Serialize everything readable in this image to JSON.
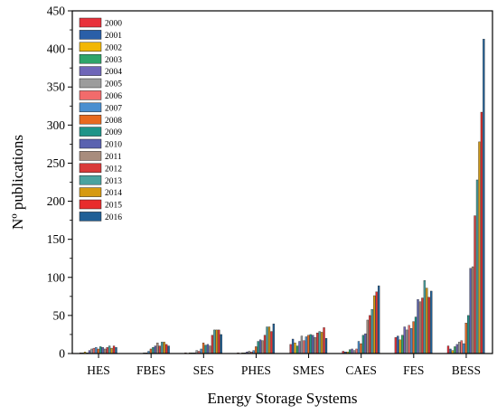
{
  "chart_data": {
    "type": "bar",
    "xlabel": "Energy Storage Systems",
    "ylabel": "Nº publications",
    "ylim": [
      0,
      450
    ],
    "yticks": [
      0,
      50,
      100,
      150,
      200,
      250,
      300,
      350,
      400,
      450
    ],
    "grid": false,
    "legend_position": "top-left",
    "categories": [
      "HES",
      "FBES",
      "SES",
      "PHES",
      "SMES",
      "CAES",
      "FES",
      "BESS"
    ],
    "series": [
      {
        "name": "2000",
        "color": "#e8313b",
        "values": [
          1,
          0,
          1,
          1,
          12,
          3,
          21,
          10
        ]
      },
      {
        "name": "2001",
        "color": "#2a5fa8",
        "values": [
          1,
          0,
          0,
          0,
          19,
          2,
          23,
          6
        ]
      },
      {
        "name": "2002",
        "color": "#f2b705",
        "values": [
          2,
          0,
          1,
          1,
          14,
          2,
          18,
          4
        ]
      },
      {
        "name": "2003",
        "color": "#2fa56a",
        "values": [
          1,
          0,
          1,
          1,
          10,
          5,
          24,
          9
        ]
      },
      {
        "name": "2004",
        "color": "#6f66b8",
        "values": [
          4,
          0,
          1,
          2,
          16,
          6,
          35,
          12
        ]
      },
      {
        "name": "2005",
        "color": "#9c9c9c",
        "values": [
          6,
          1,
          4,
          3,
          23,
          4,
          31,
          15
        ]
      },
      {
        "name": "2006",
        "color": "#f26b6b",
        "values": [
          7,
          1,
          3,
          2,
          17,
          6,
          37,
          17
        ]
      },
      {
        "name": "2007",
        "color": "#4a8fd0",
        "values": [
          8,
          3,
          6,
          4,
          22,
          16,
          33,
          13
        ]
      },
      {
        "name": "2008",
        "color": "#e86a1f",
        "values": [
          6,
          6,
          14,
          9,
          24,
          13,
          42,
          40
        ]
      },
      {
        "name": "2009",
        "color": "#1e9488",
        "values": [
          9,
          8,
          11,
          16,
          25,
          24,
          48,
          50
        ]
      },
      {
        "name": "2010",
        "color": "#5a62b0",
        "values": [
          8,
          10,
          12,
          18,
          24,
          26,
          71,
          112
        ]
      },
      {
        "name": "2011",
        "color": "#a88c7d",
        "values": [
          6,
          14,
          10,
          17,
          21,
          44,
          68,
          114
        ]
      },
      {
        "name": "2012",
        "color": "#d93a3a",
        "values": [
          8,
          10,
          24,
          24,
          27,
          50,
          73,
          181
        ]
      },
      {
        "name": "2013",
        "color": "#4aa3a0",
        "values": [
          10,
          15,
          31,
          35,
          29,
          58,
          96,
          228
        ]
      },
      {
        "name": "2014",
        "color": "#d69a10",
        "values": [
          7,
          15,
          31,
          35,
          28,
          76,
          86,
          278
        ]
      },
      {
        "name": "2015",
        "color": "#e82c2c",
        "values": [
          10,
          12,
          31,
          29,
          34,
          81,
          74,
          317
        ]
      },
      {
        "name": "2016",
        "color": "#1f5f96",
        "values": [
          8,
          10,
          25,
          39,
          20,
          89,
          82,
          413
        ]
      }
    ]
  }
}
